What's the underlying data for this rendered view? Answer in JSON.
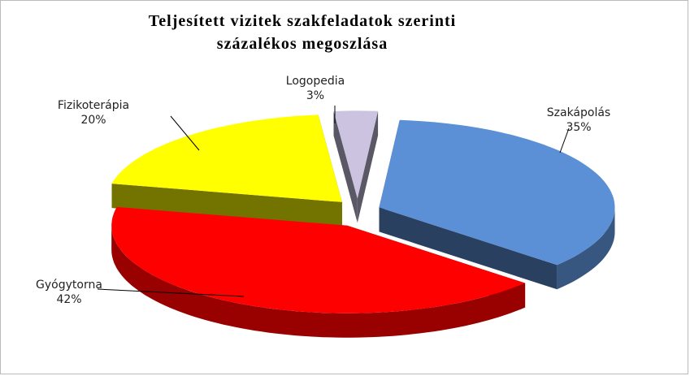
{
  "chart_data": {
    "type": "pie3d",
    "title": [
      "Teljesített vizitek szakfeladatok szerinti",
      "százalékos megoszlása"
    ],
    "categories": [
      "Szakápolás",
      "Gyógytorna",
      "Fizikoterápia",
      "Logopedia"
    ],
    "values": [
      35,
      42,
      20,
      3
    ],
    "value_labels": [
      "35%",
      "42%",
      "20%",
      "3%"
    ],
    "colors": [
      "#5b8fd6",
      "#ff0000",
      "#ffff00",
      "#cbc3e0"
    ]
  }
}
